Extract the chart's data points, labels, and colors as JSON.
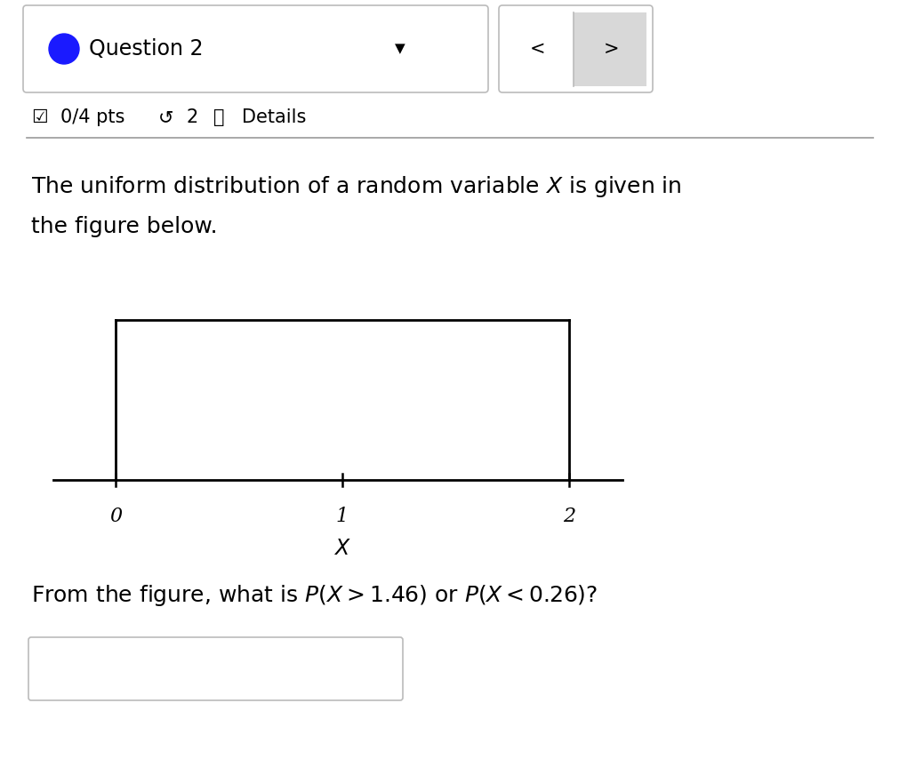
{
  "background_color": "#ffffff",
  "header_text": "Question 2",
  "header_dot_color": "#1a1aff",
  "pts_text": "0/4 pts",
  "details_text": "Details",
  "desc_line1": "The uniform distribution of a random variable $X$ is given in",
  "desc_line2": "the figure below.",
  "question_text": "From the figure, what is $P(X > 1.46)$ or $P(X < 0.26)$?",
  "uniform_a": 0,
  "uniform_b": 2,
  "x_ticks": [
    0,
    1,
    2
  ],
  "x_tick_labels": [
    "0",
    "1",
    "2"
  ],
  "x_label": "$X$",
  "box_line_color": "#000000",
  "nav_bg_color": "#d8d8d8",
  "border_color": "#cccccc",
  "font_size_header": 17,
  "font_size_body": 18,
  "font_size_question": 18,
  "font_size_pts": 15
}
